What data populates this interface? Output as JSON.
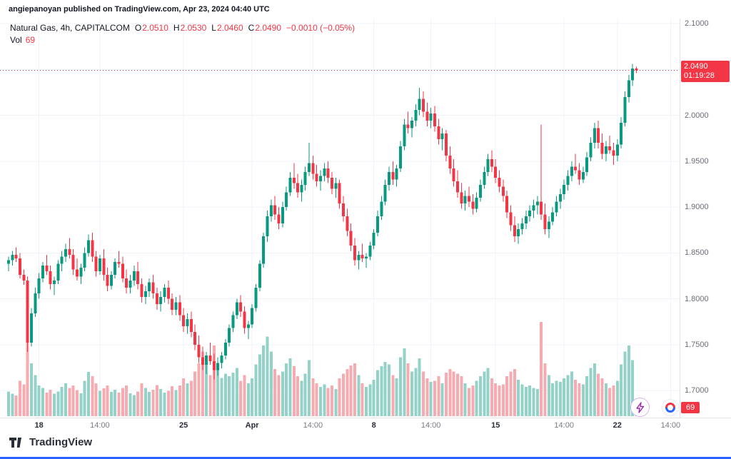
{
  "attribution": {
    "text": "angiepanoyan published on TradingView.com, Apr 23, 2024 04:40 UTC"
  },
  "legend": {
    "symbol": "Natural Gas, 4h, CAPITALCOM",
    "ohlc": [
      {
        "label": "O",
        "value": "2.0510"
      },
      {
        "label": "H",
        "value": "2.0530"
      },
      {
        "label": "L",
        "value": "2.0460"
      },
      {
        "label": "C",
        "value": "2.0490"
      }
    ],
    "change": "−0.0010 (−0.05%)",
    "vol_label": "Vol",
    "vol_value": "69"
  },
  "price_axis": {
    "labels": [
      {
        "text": "2.1000",
        "price": 2.1
      },
      {
        "text": "2.0000",
        "price": 2.0
      },
      {
        "text": "1.9500",
        "price": 1.95
      },
      {
        "text": "1.9000",
        "price": 1.9
      },
      {
        "text": "1.8500",
        "price": 1.85
      },
      {
        "text": "1.8000",
        "price": 1.8
      },
      {
        "text": "1.7500",
        "price": 1.75
      },
      {
        "text": "1.7000",
        "price": 1.7
      }
    ],
    "badge_price": "2.0490",
    "badge_countdown": "01:19:28",
    "volume_badge": "69"
  },
  "footer": {
    "brand": "TradingView"
  },
  "colors": {
    "up": "#089981",
    "down": "#f23645",
    "vol_up": "#93d2c8",
    "vol_down": "#f7abb1",
    "grid": "#f0f3fa",
    "axis_text": "#6a6d78",
    "badge_bg": "#f23645",
    "accent_blue": "#2962ff",
    "bolt_purple": "#9c27b0"
  },
  "chart_data": {
    "type": "candlestick",
    "title": "Natural Gas, 4h, CAPITALCOM",
    "symbol": "Natural Gas",
    "interval": "4h",
    "exchange": "CAPITALCOM",
    "current_bar": {
      "open": 2.051,
      "high": 2.053,
      "low": 2.046,
      "close": 2.049,
      "change": -0.001,
      "change_pct": -0.05,
      "volume": 69
    },
    "y_axis": {
      "min": 1.7,
      "max": 2.1,
      "tick": 0.05
    },
    "x_labels": [
      {
        "text": "18",
        "index": 8,
        "major": true
      },
      {
        "text": "14:00",
        "index": 24,
        "major": false
      },
      {
        "text": "25",
        "index": 46,
        "major": true
      },
      {
        "text": "Apr",
        "index": 64,
        "major": true
      },
      {
        "text": "14:00",
        "index": 80,
        "major": false
      },
      {
        "text": "8",
        "index": 96,
        "major": true
      },
      {
        "text": "14:00",
        "index": 111,
        "major": false
      },
      {
        "text": "15",
        "index": 128,
        "major": true
      },
      {
        "text": "14:00",
        "index": 146,
        "major": false
      },
      {
        "text": "22",
        "index": 160,
        "major": true
      },
      {
        "text": "14:00",
        "index": 174,
        "major": false
      }
    ],
    "candles_format": [
      "open",
      "high",
      "low",
      "close",
      "volume"
    ],
    "candles": [
      [
        1.838,
        1.846,
        1.83,
        1.842,
        420
      ],
      [
        1.842,
        1.852,
        1.836,
        1.848,
        380
      ],
      [
        1.848,
        1.856,
        1.84,
        1.844,
        350
      ],
      [
        1.844,
        1.85,
        1.822,
        1.826,
        600
      ],
      [
        1.826,
        1.832,
        1.815,
        1.82,
        540
      ],
      [
        1.82,
        1.824,
        1.742,
        1.752,
        1400
      ],
      [
        1.752,
        1.79,
        1.748,
        1.784,
        900
      ],
      [
        1.784,
        1.812,
        1.78,
        1.806,
        700
      ],
      [
        1.806,
        1.828,
        1.8,
        1.822,
        520
      ],
      [
        1.822,
        1.84,
        1.818,
        1.836,
        480
      ],
      [
        1.836,
        1.848,
        1.826,
        1.83,
        400
      ],
      [
        1.83,
        1.836,
        1.81,
        1.816,
        450
      ],
      [
        1.816,
        1.824,
        1.804,
        1.82,
        380
      ],
      [
        1.82,
        1.842,
        1.816,
        1.838,
        420
      ],
      [
        1.838,
        1.852,
        1.83,
        1.846,
        500
      ],
      [
        1.846,
        1.86,
        1.84,
        1.854,
        560
      ],
      [
        1.854,
        1.866,
        1.844,
        1.848,
        480
      ],
      [
        1.848,
        1.854,
        1.826,
        1.832,
        520
      ],
      [
        1.832,
        1.844,
        1.82,
        1.824,
        440
      ],
      [
        1.824,
        1.838,
        1.816,
        1.834,
        390
      ],
      [
        1.834,
        1.856,
        1.83,
        1.85,
        600
      ],
      [
        1.85,
        1.87,
        1.846,
        1.864,
        750
      ],
      [
        1.864,
        1.872,
        1.84,
        1.846,
        680
      ],
      [
        1.846,
        1.852,
        1.824,
        1.83,
        560
      ],
      [
        1.83,
        1.848,
        1.826,
        1.844,
        430
      ],
      [
        1.844,
        1.854,
        1.82,
        1.826,
        470
      ],
      [
        1.826,
        1.834,
        1.808,
        1.814,
        520
      ],
      [
        1.814,
        1.83,
        1.81,
        1.826,
        410
      ],
      [
        1.826,
        1.844,
        1.822,
        1.84,
        450
      ],
      [
        1.84,
        1.852,
        1.834,
        1.838,
        400
      ],
      [
        1.838,
        1.846,
        1.818,
        1.822,
        480
      ],
      [
        1.822,
        1.832,
        1.806,
        1.812,
        520
      ],
      [
        1.812,
        1.826,
        1.806,
        1.82,
        390
      ],
      [
        1.82,
        1.836,
        1.814,
        1.83,
        360
      ],
      [
        1.83,
        1.84,
        1.81,
        1.816,
        420
      ],
      [
        1.816,
        1.822,
        1.796,
        1.802,
        560
      ],
      [
        1.802,
        1.814,
        1.794,
        1.808,
        480
      ],
      [
        1.808,
        1.822,
        1.802,
        1.818,
        410
      ],
      [
        1.818,
        1.826,
        1.8,
        1.806,
        450
      ],
      [
        1.806,
        1.812,
        1.788,
        1.794,
        530
      ],
      [
        1.794,
        1.808,
        1.786,
        1.802,
        460
      ],
      [
        1.802,
        1.816,
        1.796,
        1.812,
        400
      ],
      [
        1.812,
        1.82,
        1.794,
        1.8,
        430
      ],
      [
        1.8,
        1.806,
        1.782,
        1.788,
        510
      ],
      [
        1.788,
        1.802,
        1.782,
        1.796,
        440
      ],
      [
        1.796,
        1.804,
        1.776,
        1.782,
        520
      ],
      [
        1.782,
        1.79,
        1.764,
        1.77,
        640
      ],
      [
        1.77,
        1.784,
        1.762,
        1.778,
        560
      ],
      [
        1.778,
        1.786,
        1.758,
        1.764,
        600
      ],
      [
        1.764,
        1.772,
        1.744,
        1.75,
        760
      ],
      [
        1.75,
        1.76,
        1.73,
        1.736,
        900
      ],
      [
        1.736,
        1.748,
        1.722,
        1.728,
        1100
      ],
      [
        1.728,
        1.742,
        1.718,
        1.738,
        950
      ],
      [
        1.738,
        1.752,
        1.728,
        1.732,
        700
      ],
      [
        1.732,
        1.74,
        1.712,
        1.722,
        1200
      ],
      [
        1.722,
        1.736,
        1.716,
        1.73,
        800
      ],
      [
        1.73,
        1.742,
        1.724,
        1.738,
        650
      ],
      [
        1.738,
        1.756,
        1.734,
        1.752,
        720
      ],
      [
        1.752,
        1.772,
        1.748,
        1.768,
        680
      ],
      [
        1.768,
        1.786,
        1.764,
        1.782,
        740
      ],
      [
        1.782,
        1.8,
        1.778,
        1.796,
        820
      ],
      [
        1.796,
        1.804,
        1.78,
        1.786,
        600
      ],
      [
        1.786,
        1.792,
        1.762,
        1.768,
        700
      ],
      [
        1.768,
        1.776,
        1.756,
        1.772,
        560
      ],
      [
        1.772,
        1.794,
        1.768,
        1.79,
        640
      ],
      [
        1.79,
        1.816,
        1.786,
        1.812,
        880
      ],
      [
        1.812,
        1.842,
        1.808,
        1.838,
        1050
      ],
      [
        1.838,
        1.872,
        1.834,
        1.868,
        1200
      ],
      [
        1.868,
        1.896,
        1.862,
        1.89,
        1350
      ],
      [
        1.89,
        1.908,
        1.884,
        1.902,
        1100
      ],
      [
        1.902,
        1.912,
        1.886,
        1.892,
        800
      ],
      [
        1.892,
        1.9,
        1.876,
        1.882,
        700
      ],
      [
        1.882,
        1.906,
        1.878,
        1.9,
        760
      ],
      [
        1.9,
        1.922,
        1.896,
        1.916,
        900
      ],
      [
        1.916,
        1.938,
        1.912,
        1.932,
        980
      ],
      [
        1.932,
        1.948,
        1.92,
        1.926,
        850
      ],
      [
        1.926,
        1.936,
        1.91,
        1.916,
        680
      ],
      [
        1.916,
        1.93,
        1.906,
        1.924,
        600
      ],
      [
        1.924,
        1.944,
        1.918,
        1.938,
        720
      ],
      [
        1.938,
        1.97,
        1.934,
        1.948,
        950
      ],
      [
        1.948,
        1.956,
        1.93,
        1.936,
        640
      ],
      [
        1.936,
        1.946,
        1.922,
        1.928,
        560
      ],
      [
        1.928,
        1.94,
        1.918,
        1.934,
        500
      ],
      [
        1.934,
        1.948,
        1.928,
        1.942,
        540
      ],
      [
        1.942,
        1.95,
        1.926,
        1.932,
        480
      ],
      [
        1.932,
        1.938,
        1.914,
        1.92,
        520
      ],
      [
        1.92,
        1.932,
        1.91,
        1.926,
        460
      ],
      [
        1.926,
        1.93,
        1.898,
        1.904,
        640
      ],
      [
        1.904,
        1.912,
        1.884,
        1.89,
        720
      ],
      [
        1.89,
        1.898,
        1.868,
        1.874,
        800
      ],
      [
        1.874,
        1.882,
        1.852,
        1.858,
        860
      ],
      [
        1.858,
        1.866,
        1.836,
        1.842,
        900
      ],
      [
        1.842,
        1.852,
        1.832,
        1.848,
        700
      ],
      [
        1.848,
        1.86,
        1.84,
        1.844,
        560
      ],
      [
        1.844,
        1.85,
        1.834,
        1.846,
        500
      ],
      [
        1.846,
        1.862,
        1.842,
        1.858,
        540
      ],
      [
        1.858,
        1.876,
        1.854,
        1.872,
        620
      ],
      [
        1.872,
        1.896,
        1.868,
        1.89,
        780
      ],
      [
        1.89,
        1.912,
        1.886,
        1.906,
        850
      ],
      [
        1.906,
        1.93,
        1.902,
        1.924,
        920
      ],
      [
        1.924,
        1.944,
        1.918,
        1.938,
        880
      ],
      [
        1.938,
        1.95,
        1.924,
        1.93,
        700
      ],
      [
        1.93,
        1.946,
        1.922,
        1.942,
        640
      ],
      [
        1.942,
        1.972,
        1.938,
        1.966,
        1000
      ],
      [
        1.966,
        1.996,
        1.962,
        1.99,
        1150
      ],
      [
        1.99,
        2.004,
        1.98,
        1.986,
        900
      ],
      [
        1.986,
        1.998,
        1.976,
        1.994,
        760
      ],
      [
        1.994,
        2.012,
        1.988,
        2.006,
        820
      ],
      [
        2.006,
        2.03,
        2.0,
        2.018,
        980
      ],
      [
        2.018,
        2.026,
        1.998,
        2.004,
        760
      ],
      [
        2.004,
        2.014,
        1.988,
        1.994,
        640
      ],
      [
        1.994,
        2.008,
        1.986,
        2.002,
        580
      ],
      [
        2.002,
        2.01,
        1.982,
        1.988,
        600
      ],
      [
        1.988,
        1.996,
        1.968,
        1.974,
        680
      ],
      [
        1.974,
        1.986,
        1.962,
        1.98,
        560
      ],
      [
        1.98,
        1.984,
        1.95,
        1.956,
        740
      ],
      [
        1.956,
        1.966,
        1.936,
        1.942,
        800
      ],
      [
        1.942,
        1.952,
        1.922,
        1.928,
        760
      ],
      [
        1.928,
        1.94,
        1.91,
        1.916,
        720
      ],
      [
        1.916,
        1.926,
        1.898,
        1.904,
        680
      ],
      [
        1.904,
        1.918,
        1.896,
        1.912,
        560
      ],
      [
        1.912,
        1.922,
        1.9,
        1.906,
        480
      ],
      [
        1.906,
        1.914,
        1.892,
        1.898,
        520
      ],
      [
        1.898,
        1.916,
        1.894,
        1.91,
        600
      ],
      [
        1.91,
        1.93,
        1.906,
        1.924,
        680
      ],
      [
        1.924,
        1.944,
        1.92,
        1.938,
        760
      ],
      [
        1.938,
        1.958,
        1.934,
        1.952,
        820
      ],
      [
        1.952,
        1.962,
        1.938,
        1.944,
        640
      ],
      [
        1.944,
        1.952,
        1.926,
        1.932,
        560
      ],
      [
        1.932,
        1.94,
        1.916,
        1.922,
        520
      ],
      [
        1.922,
        1.93,
        1.906,
        1.912,
        540
      ],
      [
        1.912,
        1.918,
        1.888,
        1.894,
        680
      ],
      [
        1.894,
        1.902,
        1.874,
        1.88,
        760
      ],
      [
        1.88,
        1.89,
        1.862,
        1.868,
        800
      ],
      [
        1.868,
        1.882,
        1.86,
        1.876,
        620
      ],
      [
        1.876,
        1.888,
        1.87,
        1.882,
        540
      ],
      [
        1.882,
        1.896,
        1.876,
        1.89,
        500
      ],
      [
        1.89,
        1.902,
        1.884,
        1.896,
        520
      ],
      [
        1.896,
        1.908,
        1.888,
        1.902,
        480
      ],
      [
        1.902,
        1.912,
        1.892,
        1.906,
        460
      ],
      [
        1.906,
        1.99,
        1.886,
        1.892,
        1600
      ],
      [
        1.892,
        1.904,
        1.87,
        1.876,
        900
      ],
      [
        1.876,
        1.89,
        1.866,
        1.884,
        700
      ],
      [
        1.884,
        1.9,
        1.88,
        1.894,
        560
      ],
      [
        1.894,
        1.912,
        1.89,
        1.906,
        600
      ],
      [
        1.906,
        1.92,
        1.898,
        1.914,
        580
      ],
      [
        1.914,
        1.93,
        1.908,
        1.924,
        640
      ],
      [
        1.924,
        1.94,
        1.918,
        1.934,
        700
      ],
      [
        1.934,
        1.95,
        1.928,
        1.944,
        760
      ],
      [
        1.944,
        1.958,
        1.936,
        1.94,
        620
      ],
      [
        1.94,
        1.948,
        1.924,
        1.93,
        560
      ],
      [
        1.93,
        1.944,
        1.926,
        1.938,
        540
      ],
      [
        1.938,
        1.96,
        1.934,
        1.954,
        680
      ],
      [
        1.954,
        1.976,
        1.95,
        1.97,
        820
      ],
      [
        1.97,
        1.992,
        1.964,
        1.986,
        900
      ],
      [
        1.986,
        1.994,
        1.964,
        1.97,
        720
      ],
      [
        1.97,
        1.98,
        1.952,
        1.958,
        640
      ],
      [
        1.958,
        1.972,
        1.95,
        1.966,
        560
      ],
      [
        1.966,
        1.978,
        1.958,
        1.962,
        480
      ],
      [
        1.962,
        1.97,
        1.946,
        1.956,
        520
      ],
      [
        1.956,
        1.974,
        1.95,
        1.968,
        600
      ],
      [
        1.968,
        1.998,
        1.964,
        1.992,
        880
      ],
      [
        1.992,
        2.026,
        1.988,
        2.02,
        1100
      ],
      [
        2.02,
        2.044,
        2.014,
        2.038,
        1200
      ],
      [
        2.038,
        2.056,
        2.032,
        2.051,
        950
      ],
      [
        2.051,
        2.053,
        2.046,
        2.049,
        69
      ]
    ]
  }
}
